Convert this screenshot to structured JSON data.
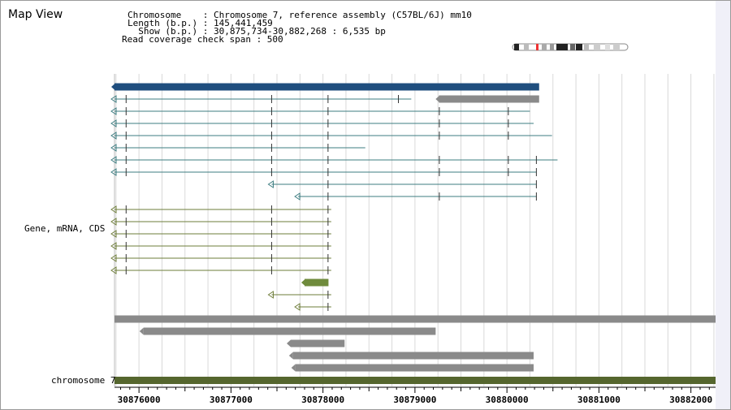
{
  "title": "Map View",
  "header": {
    "chromosome_line": "Chromosome    : Chromosome 7, reference assembly (C57BL/6J) mm10",
    "length_line": "Length (b.p.) : 145,441,459",
    "show_line": "  Show (b.p.) : 30,875,734-30,882,268 : 6,535 bp",
    "span_line": "Read coverage check span : 500"
  },
  "labels": {
    "gene_track": "Gene, mRNA, CDS",
    "chromosome_track": "chromosome 7"
  },
  "axis": {
    "start": 30875734,
    "end": 30882268,
    "ticks": [
      "30876000",
      "30877000",
      "30878000",
      "30879000",
      "30880000",
      "30881000",
      "30882000"
    ]
  },
  "colors": {
    "gene": "#1f4e7e",
    "mrna_teal": "#3c7c80",
    "mrna_olive": "#6e7d3a",
    "cds_green": "#6f8b3c",
    "feature_gray": "#8a8a8a",
    "chromosome": "#55662e",
    "grid": "#d9d9d9"
  },
  "tracks": {
    "gene_bar": {
      "start": 30875734,
      "end": 30880350
    },
    "teal_mrnas": [
      {
        "start": 30875734,
        "end": 30878960,
        "junctions": [
          30875860,
          30877442,
          30878055,
          30878820
        ]
      },
      {
        "start": 30875734,
        "end": 30880250,
        "junctions": [
          30875860,
          30877442,
          30878055,
          30879265,
          30880015
        ]
      },
      {
        "start": 30875734,
        "end": 30880290,
        "junctions": [
          30875860,
          30877442,
          30878055,
          30879265,
          30880015
        ]
      },
      {
        "start": 30875734,
        "end": 30880490,
        "junctions": [
          30875860,
          30877442,
          30878055,
          30879265,
          30880015
        ]
      },
      {
        "start": 30875734,
        "end": 30878460,
        "junctions": [
          30875860,
          30877442,
          30878055
        ]
      },
      {
        "start": 30875734,
        "end": 30880550,
        "junctions": [
          30875860,
          30877442,
          30878055,
          30879265,
          30880015,
          30880320
        ]
      },
      {
        "start": 30875734,
        "end": 30880320,
        "junctions": [
          30875860,
          30877442,
          30878055,
          30879265,
          30880015,
          30880320
        ]
      },
      {
        "start": 30877442,
        "end": 30880320,
        "junctions": [
          30878055,
          30880320
        ]
      },
      {
        "start": 30877730,
        "end": 30880320,
        "junctions": [
          30878055,
          30879265,
          30880320
        ]
      }
    ],
    "olive_mrnas": [
      {
        "start": 30875734,
        "end": 30878090,
        "junctions": [
          30875860,
          30877442,
          30878055
        ]
      },
      {
        "start": 30875734,
        "end": 30878090,
        "junctions": [
          30875860,
          30877442,
          30878055
        ]
      },
      {
        "start": 30875734,
        "end": 30878090,
        "junctions": [
          30875860,
          30877442,
          30878055
        ]
      },
      {
        "start": 30875734,
        "end": 30878090,
        "junctions": [
          30875860,
          30877442,
          30878055
        ]
      },
      {
        "start": 30875734,
        "end": 30878090,
        "junctions": [
          30875860,
          30877442,
          30878055
        ]
      },
      {
        "start": 30875734,
        "end": 30878090,
        "junctions": [
          30875860,
          30877442,
          30878055
        ]
      }
    ],
    "cds_block": {
      "start": 30877800,
      "end": 30878060
    },
    "olive_short": [
      {
        "start": 30877442,
        "end": 30878090,
        "junctions": [
          30878055
        ]
      },
      {
        "start": 30877730,
        "end": 30878090,
        "junctions": [
          30878055
        ]
      }
    ],
    "gray_top_right": {
      "start": 30879260,
      "end": 30880350
    },
    "gray_features": [
      {
        "start": 30875734,
        "end": 30882268
      },
      {
        "start": 30876050,
        "end": 30879225
      },
      {
        "start": 30877650,
        "end": 30878235
      },
      {
        "start": 30877675,
        "end": 30880290
      },
      {
        "start": 30877700,
        "end": 30880290
      }
    ],
    "chromosome_bar": {
      "start": 30875734,
      "end": 30882268
    }
  }
}
